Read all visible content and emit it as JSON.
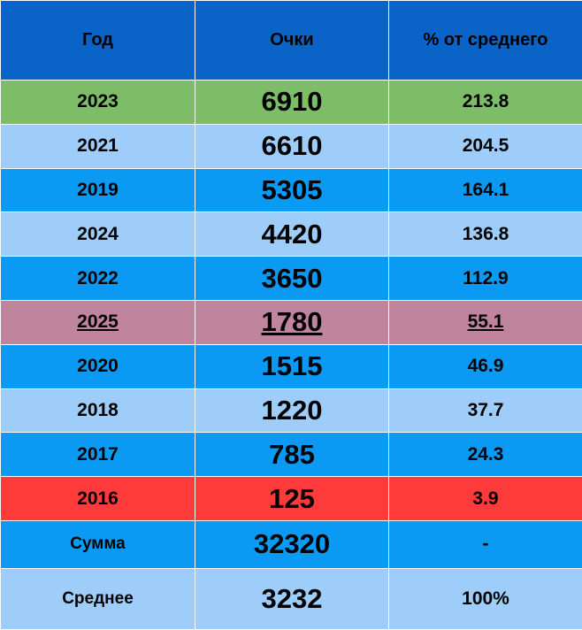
{
  "table": {
    "header": [
      "Год",
      "Очки",
      "% от среднего"
    ],
    "rows": [
      [
        "2023",
        "6910",
        "213.8"
      ],
      [
        "2021",
        "6610",
        "204.5"
      ],
      [
        "2019",
        "5305",
        "164.1"
      ],
      [
        "2024",
        "4420",
        "136.8"
      ],
      [
        "2022",
        "3650",
        "112.9"
      ],
      [
        "2025",
        "1780",
        "55.1"
      ],
      [
        "2020",
        "1515",
        "46.9"
      ],
      [
        "2018",
        "1220",
        "37.7"
      ],
      [
        "2017",
        "785",
        "24.3"
      ],
      [
        "2016",
        "125",
        "3.9"
      ],
      [
        "Сумма",
        "32320",
        "-"
      ],
      [
        "Среднее",
        "3232",
        "100%"
      ]
    ]
  }
}
